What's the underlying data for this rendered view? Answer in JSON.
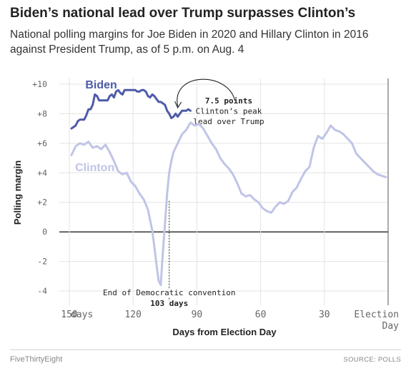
{
  "header": {
    "title": "Biden’s national lead over Trump surpasses Clinton’s",
    "subtitle": "National polling margins for Joe Biden in 2020 and Hillary Clinton in 2016 against President Trump, as of 5 p.m. on Aug. 4"
  },
  "footer": {
    "brand": "FiveThirtyEight",
    "source": "SOURCE: POLLS"
  },
  "chart_data": {
    "type": "line",
    "xlabel": "Days from Election Day",
    "ylabel": "Polling margin",
    "xlim": [
      150,
      0
    ],
    "ylim": [
      -4,
      10
    ],
    "x_ticks": [
      {
        "value": 150,
        "label": "150"
      },
      {
        "value": 120,
        "label": "120"
      },
      {
        "value": 90,
        "label": "90"
      },
      {
        "value": 60,
        "label": "60"
      },
      {
        "value": 30,
        "label": "30"
      }
    ],
    "x_tick_unit": "days",
    "x_end_label": [
      "Election",
      "Day"
    ],
    "y_ticks": [
      {
        "value": 10,
        "label": "+10"
      },
      {
        "value": 8,
        "label": "+8"
      },
      {
        "value": 6,
        "label": "+6"
      },
      {
        "value": 4,
        "label": "+4"
      },
      {
        "value": 2,
        "label": "+2"
      },
      {
        "value": 0,
        "label": "0"
      },
      {
        "value": -2,
        "label": "-2"
      },
      {
        "value": -4,
        "label": "-4"
      }
    ],
    "grid": true,
    "colors": {
      "biden": "#4e5ba8",
      "clinton": "#c0c4e6",
      "grid": "#e3e3e3",
      "zero": "#222222"
    },
    "series": [
      {
        "name": "Biden",
        "color": "#4e5ba8",
        "x": [
          149,
          148,
          147,
          146,
          145,
          144,
          143,
          142,
          141,
          140,
          139,
          138,
          137,
          136,
          135,
          134,
          133,
          132,
          131,
          130,
          129,
          128,
          127,
          126,
          125,
          124,
          123,
          122,
          121,
          120,
          119,
          118,
          117,
          116,
          115,
          114,
          113,
          112,
          111,
          110,
          109,
          108,
          107,
          106,
          105,
          104,
          103,
          102,
          101,
          100,
          99,
          98,
          97,
          96,
          95,
          94,
          93
        ],
        "values": [
          7.0,
          7.1,
          7.2,
          7.5,
          7.6,
          7.6,
          7.6,
          7.9,
          8.3,
          8.3,
          8.6,
          9.3,
          9.2,
          8.9,
          8.9,
          8.9,
          8.9,
          8.9,
          9.2,
          9.3,
          9.1,
          9.5,
          9.6,
          9.4,
          9.3,
          9.6,
          9.6,
          9.6,
          9.6,
          9.6,
          9.6,
          9.5,
          9.5,
          9.6,
          9.6,
          9.5,
          9.2,
          9.1,
          9.3,
          9.2,
          9.0,
          8.8,
          8.8,
          8.7,
          8.6,
          8.2,
          8.0,
          7.7,
          7.8,
          8.0,
          7.8,
          8.0,
          8.2,
          8.2,
          8.2,
          8.3,
          8.2
        ]
      },
      {
        "name": "Clinton",
        "color": "#c0c4e6",
        "x": [
          149,
          147,
          145,
          143,
          141,
          139,
          137,
          135,
          133,
          131,
          129,
          127,
          125,
          123,
          121,
          119,
          117,
          115,
          113,
          111,
          110,
          109,
          108,
          107,
          106,
          105,
          104,
          103,
          102,
          101,
          99,
          97,
          95,
          93,
          91,
          89,
          87,
          85,
          83,
          81,
          79,
          77,
          75,
          73,
          71,
          69,
          67,
          65,
          63,
          61,
          59,
          57,
          55,
          53,
          51,
          49,
          47,
          45,
          43,
          41,
          39,
          37,
          35,
          33,
          31,
          29,
          27,
          25,
          23,
          21,
          19,
          17,
          15,
          13,
          11,
          9,
          7,
          5,
          3,
          1
        ],
        "values": [
          5.2,
          5.8,
          6.0,
          5.9,
          6.1,
          5.7,
          5.8,
          5.6,
          5.9,
          5.4,
          4.8,
          4.1,
          3.9,
          4.0,
          3.4,
          3.1,
          2.6,
          2.2,
          1.5,
          0.1,
          -1.0,
          -2.2,
          -3.3,
          -3.6,
          -1.4,
          0.5,
          2.6,
          4.0,
          4.8,
          5.4,
          6.0,
          6.6,
          6.9,
          7.4,
          7.2,
          7.3,
          7.0,
          6.5,
          6.0,
          5.6,
          5.0,
          4.6,
          4.3,
          3.9,
          3.3,
          2.6,
          2.4,
          2.5,
          2.2,
          2.0,
          1.6,
          1.4,
          1.3,
          1.7,
          2.0,
          1.9,
          2.1,
          2.7,
          3.0,
          3.6,
          4.1,
          4.4,
          5.7,
          6.5,
          6.3,
          6.7,
          7.2,
          6.9,
          6.8,
          6.6,
          6.3,
          6.0,
          5.3,
          5.0,
          4.7,
          4.4,
          4.1,
          3.9,
          3.8,
          3.7
        ]
      }
    ],
    "series_labels": [
      {
        "series": "Biden",
        "text": "Biden",
        "x": 135,
        "y": 9.7
      },
      {
        "series": "Clinton",
        "text": "Clinton",
        "x": 138,
        "y": 4.1
      }
    ],
    "annotations": [
      {
        "kind": "peak",
        "lines": [
          {
            "text": "7.5 points",
            "bold": true
          },
          {
            "text": "Clinton’s peak"
          },
          {
            "text": "lead over Trump"
          }
        ],
        "x": 75,
        "y": 8.7,
        "arrow_from": [
          99,
          8.5
        ],
        "arrow_to": [
          93,
          7.9
        ]
      },
      {
        "kind": "convention",
        "lines": [
          {
            "text": "End of Democratic convention"
          },
          {
            "text": "103 days",
            "bold": true
          }
        ],
        "x": 103,
        "line_top": 2.1,
        "line_bottom": -4.7
      }
    ]
  }
}
